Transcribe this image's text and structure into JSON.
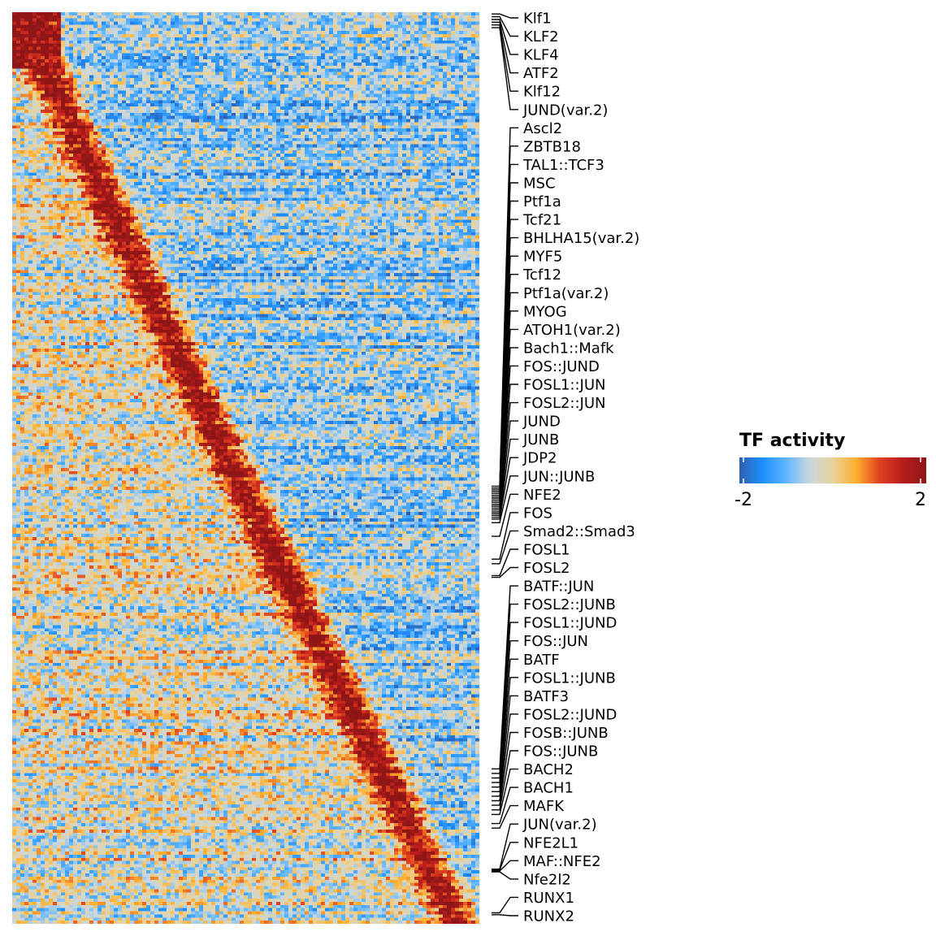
{
  "chart_data": {
    "type": "heatmap",
    "description_note": "",
    "colorbar": {
      "title": "TF activity",
      "min": -2,
      "max": 2,
      "min_label": "-2",
      "max_label": "2",
      "colors": [
        "#2f5fae",
        "#1e90ff",
        "#5fb5ff",
        "#c9d7df",
        "#e8d29a",
        "#ffb02e",
        "#e04020",
        "#b81c1c",
        "#8f1616"
      ]
    },
    "row_labels": [
      "Klf1",
      "KLF2",
      "KLF4",
      "ATF2",
      "Klf12",
      "JUND(var.2)",
      "Ascl2",
      "ZBTB18",
      "TAL1::TCF3",
      "MSC",
      "Ptf1a",
      "Tcf21",
      "BHLHA15(var.2)",
      "MYF5",
      "Tcf12",
      "Ptf1a(var.2)",
      "MYOG",
      "ATOH1(var.2)",
      "Bach1::Mafk",
      "FOS::JUND",
      "FOSL1::JUN",
      "FOSL2::JUN",
      "JUND",
      "JUNB",
      "JDP2",
      "JUN::JUNB",
      "NFE2",
      "FOS",
      "Smad2::Smad3",
      "FOSL1",
      "FOSL2",
      "BATF::JUN",
      "FOSL2::JUNB",
      "FOSL1::JUND",
      "FOS::JUN",
      "BATF",
      "FOSL1::JUNB",
      "BATF3",
      "FOSL2::JUND",
      "FOSB::JUNB",
      "FOS::JUNB",
      "BACH2",
      "BACH1",
      "MAFK",
      "JUN(var.2)",
      "NFE2L1",
      "MAF::NFE2",
      "Nfe2l2",
      "RUNX1",
      "RUNX2"
    ]
  }
}
